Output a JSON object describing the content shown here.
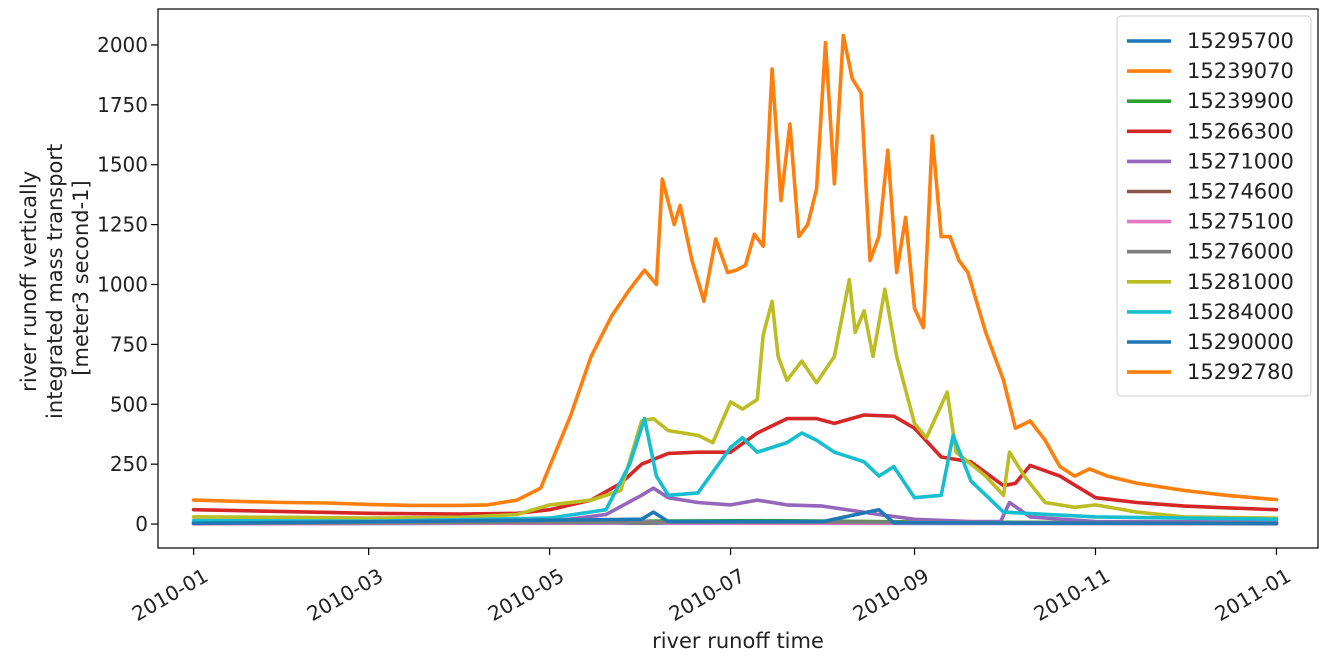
{
  "chart_data": {
    "type": "line",
    "xlabel": "river runoff time",
    "ylabel_lines": [
      "river runoff vertically",
      "integrated mass transport",
      "[meter3 second-1]"
    ],
    "x_ticks": [
      "2010-01",
      "2010-03",
      "2010-05",
      "2010-07",
      "2010-09",
      "2010-11",
      "2011-01"
    ],
    "xlim": [
      "2009-12-20",
      "2011-01-15"
    ],
    "y_ticks": [
      "0",
      "250",
      "500",
      "750",
      "1000",
      "1250",
      "1500",
      "1750",
      "2000"
    ],
    "ylim": [
      -100,
      2150
    ],
    "grid": false,
    "legend_position": "top-right",
    "series": [
      {
        "name": "15295700",
        "color": "#1f77b4",
        "points": [
          [
            "2010-01-01",
            2
          ],
          [
            "2010-06-01",
            4
          ],
          [
            "2010-09-01",
            3
          ],
          [
            "2011-01-01",
            2
          ]
        ]
      },
      {
        "name": "15239070",
        "color": "#ff7f0e",
        "points": [
          [
            "2010-01-01",
            2
          ],
          [
            "2010-06-01",
            6
          ],
          [
            "2010-08-01",
            5
          ],
          [
            "2011-01-01",
            2
          ]
        ]
      },
      {
        "name": "15239900",
        "color": "#2ca02c",
        "points": [
          [
            "2010-01-01",
            3
          ],
          [
            "2010-06-01",
            12
          ],
          [
            "2010-07-15",
            14
          ],
          [
            "2010-09-01",
            9
          ],
          [
            "2011-01-01",
            3
          ]
        ]
      },
      {
        "name": "15266300",
        "color": "#d62728",
        "points": [
          [
            "2010-01-01",
            60
          ],
          [
            "2010-02-01",
            52
          ],
          [
            "2010-03-01",
            45
          ],
          [
            "2010-04-01",
            42
          ],
          [
            "2010-04-20",
            45
          ],
          [
            "2010-05-01",
            60
          ],
          [
            "2010-05-15",
            100
          ],
          [
            "2010-05-25",
            170
          ],
          [
            "2010-06-01",
            250
          ],
          [
            "2010-06-10",
            295
          ],
          [
            "2010-06-20",
            300
          ],
          [
            "2010-07-01",
            300
          ],
          [
            "2010-07-10",
            380
          ],
          [
            "2010-07-20",
            440
          ],
          [
            "2010-07-30",
            440
          ],
          [
            "2010-08-05",
            420
          ],
          [
            "2010-08-15",
            455
          ],
          [
            "2010-08-25",
            450
          ],
          [
            "2010-09-01",
            400
          ],
          [
            "2010-09-10",
            280
          ],
          [
            "2010-09-20",
            260
          ],
          [
            "2010-10-01",
            160
          ],
          [
            "2010-10-05",
            170
          ],
          [
            "2010-10-10",
            245
          ],
          [
            "2010-10-20",
            200
          ],
          [
            "2010-11-01",
            110
          ],
          [
            "2010-11-15",
            90
          ],
          [
            "2010-12-01",
            75
          ],
          [
            "2010-12-15",
            68
          ],
          [
            "2011-01-01",
            60
          ]
        ]
      },
      {
        "name": "15271000",
        "color": "#9467bd",
        "points": [
          [
            "2010-01-01",
            10
          ],
          [
            "2010-03-01",
            8
          ],
          [
            "2010-05-01",
            10
          ],
          [
            "2010-05-20",
            40
          ],
          [
            "2010-06-01",
            120
          ],
          [
            "2010-06-05",
            150
          ],
          [
            "2010-06-10",
            110
          ],
          [
            "2010-06-20",
            90
          ],
          [
            "2010-07-01",
            80
          ],
          [
            "2010-07-10",
            100
          ],
          [
            "2010-07-20",
            80
          ],
          [
            "2010-08-01",
            75
          ],
          [
            "2010-08-20",
            40
          ],
          [
            "2010-09-01",
            20
          ],
          [
            "2010-09-20",
            10
          ],
          [
            "2010-09-30",
            10
          ],
          [
            "2010-10-03",
            90
          ],
          [
            "2010-10-10",
            30
          ],
          [
            "2010-11-01",
            10
          ],
          [
            "2011-01-01",
            8
          ]
        ]
      },
      {
        "name": "15274600",
        "color": "#8c564b",
        "points": [
          [
            "2010-01-01",
            2
          ],
          [
            "2010-06-01",
            6
          ],
          [
            "2010-08-01",
            6
          ],
          [
            "2011-01-01",
            2
          ]
        ]
      },
      {
        "name": "15275100",
        "color": "#e377c2",
        "points": [
          [
            "2010-01-01",
            1
          ],
          [
            "2010-05-25",
            5
          ],
          [
            "2010-06-01",
            12
          ],
          [
            "2010-06-10",
            4
          ],
          [
            "2010-09-01",
            3
          ],
          [
            "2011-01-01",
            1
          ]
        ]
      },
      {
        "name": "15276000",
        "color": "#7f7f7f",
        "points": [
          [
            "2010-01-01",
            3
          ],
          [
            "2010-06-01",
            8
          ],
          [
            "2010-08-01",
            8
          ],
          [
            "2011-01-01",
            3
          ]
        ]
      },
      {
        "name": "15281000",
        "color": "#bcbd22",
        "points": [
          [
            "2010-01-01",
            30
          ],
          [
            "2010-02-01",
            28
          ],
          [
            "2010-03-01",
            25
          ],
          [
            "2010-04-01",
            28
          ],
          [
            "2010-04-20",
            40
          ],
          [
            "2010-05-01",
            80
          ],
          [
            "2010-05-15",
            100
          ],
          [
            "2010-05-25",
            140
          ],
          [
            "2010-06-01",
            430
          ],
          [
            "2010-06-05",
            440
          ],
          [
            "2010-06-10",
            390
          ],
          [
            "2010-06-20",
            370
          ],
          [
            "2010-06-25",
            340
          ],
          [
            "2010-07-01",
            510
          ],
          [
            "2010-07-05",
            480
          ],
          [
            "2010-07-10",
            520
          ],
          [
            "2010-07-12",
            790
          ],
          [
            "2010-07-15",
            930
          ],
          [
            "2010-07-17",
            700
          ],
          [
            "2010-07-20",
            600
          ],
          [
            "2010-07-25",
            680
          ],
          [
            "2010-07-30",
            590
          ],
          [
            "2010-08-05",
            700
          ],
          [
            "2010-08-10",
            1020
          ],
          [
            "2010-08-12",
            800
          ],
          [
            "2010-08-15",
            890
          ],
          [
            "2010-08-18",
            700
          ],
          [
            "2010-08-22",
            980
          ],
          [
            "2010-08-26",
            700
          ],
          [
            "2010-09-01",
            420
          ],
          [
            "2010-09-05",
            360
          ],
          [
            "2010-09-12",
            550
          ],
          [
            "2010-09-15",
            300
          ],
          [
            "2010-09-25",
            200
          ],
          [
            "2010-10-01",
            120
          ],
          [
            "2010-10-03",
            300
          ],
          [
            "2010-10-08",
            200
          ],
          [
            "2010-10-15",
            90
          ],
          [
            "2010-10-25",
            70
          ],
          [
            "2010-11-01",
            80
          ],
          [
            "2010-11-15",
            50
          ],
          [
            "2010-12-01",
            30
          ],
          [
            "2011-01-01",
            25
          ]
        ]
      },
      {
        "name": "15284000",
        "color": "#17becf",
        "points": [
          [
            "2010-01-01",
            15
          ],
          [
            "2010-03-01",
            12
          ],
          [
            "2010-05-01",
            25
          ],
          [
            "2010-05-20",
            60
          ],
          [
            "2010-05-28",
            250
          ],
          [
            "2010-06-02",
            440
          ],
          [
            "2010-06-06",
            200
          ],
          [
            "2010-06-10",
            120
          ],
          [
            "2010-06-20",
            130
          ],
          [
            "2010-07-01",
            320
          ],
          [
            "2010-07-05",
            360
          ],
          [
            "2010-07-10",
            300
          ],
          [
            "2010-07-20",
            340
          ],
          [
            "2010-07-25",
            380
          ],
          [
            "2010-07-30",
            350
          ],
          [
            "2010-08-05",
            300
          ],
          [
            "2010-08-15",
            260
          ],
          [
            "2010-08-20",
            200
          ],
          [
            "2010-08-25",
            240
          ],
          [
            "2010-09-01",
            110
          ],
          [
            "2010-09-10",
            120
          ],
          [
            "2010-09-14",
            370
          ],
          [
            "2010-09-20",
            180
          ],
          [
            "2010-10-01",
            50
          ],
          [
            "2010-11-01",
            30
          ],
          [
            "2011-01-01",
            20
          ]
        ]
      },
      {
        "name": "15290000",
        "color": "#1f77b4",
        "points": [
          [
            "2010-01-01",
            3
          ],
          [
            "2010-06-01",
            20
          ],
          [
            "2010-06-05",
            50
          ],
          [
            "2010-06-10",
            10
          ],
          [
            "2010-08-01",
            10
          ],
          [
            "2010-08-20",
            60
          ],
          [
            "2010-08-25",
            5
          ],
          [
            "2011-01-01",
            2
          ]
        ]
      },
      {
        "name": "15292780",
        "color": "#ff7f0e",
        "points": [
          [
            "2010-01-01",
            100
          ],
          [
            "2010-01-15",
            95
          ],
          [
            "2010-02-01",
            90
          ],
          [
            "2010-02-15",
            88
          ],
          [
            "2010-03-01",
            82
          ],
          [
            "2010-03-15",
            78
          ],
          [
            "2010-04-01",
            78
          ],
          [
            "2010-04-10",
            80
          ],
          [
            "2010-04-20",
            100
          ],
          [
            "2010-04-28",
            150
          ],
          [
            "2010-05-01",
            240
          ],
          [
            "2010-05-08",
            450
          ],
          [
            "2010-05-15",
            700
          ],
          [
            "2010-05-22",
            870
          ],
          [
            "2010-05-28",
            980
          ],
          [
            "2010-06-02",
            1060
          ],
          [
            "2010-06-06",
            1000
          ],
          [
            "2010-06-08",
            1440
          ],
          [
            "2010-06-12",
            1250
          ],
          [
            "2010-06-14",
            1330
          ],
          [
            "2010-06-18",
            1100
          ],
          [
            "2010-06-22",
            930
          ],
          [
            "2010-06-26",
            1190
          ],
          [
            "2010-06-30",
            1050
          ],
          [
            "2010-07-03",
            1060
          ],
          [
            "2010-07-06",
            1080
          ],
          [
            "2010-07-09",
            1210
          ],
          [
            "2010-07-12",
            1160
          ],
          [
            "2010-07-15",
            1900
          ],
          [
            "2010-07-18",
            1350
          ],
          [
            "2010-07-21",
            1670
          ],
          [
            "2010-07-24",
            1200
          ],
          [
            "2010-07-27",
            1250
          ],
          [
            "2010-07-30",
            1400
          ],
          [
            "2010-08-02",
            2010
          ],
          [
            "2010-08-05",
            1420
          ],
          [
            "2010-08-08",
            2040
          ],
          [
            "2010-08-11",
            1860
          ],
          [
            "2010-08-14",
            1800
          ],
          [
            "2010-08-17",
            1100
          ],
          [
            "2010-08-20",
            1200
          ],
          [
            "2010-08-23",
            1560
          ],
          [
            "2010-08-26",
            1050
          ],
          [
            "2010-08-29",
            1280
          ],
          [
            "2010-09-01",
            900
          ],
          [
            "2010-09-04",
            820
          ],
          [
            "2010-09-07",
            1620
          ],
          [
            "2010-09-10",
            1200
          ],
          [
            "2010-09-13",
            1200
          ],
          [
            "2010-09-16",
            1100
          ],
          [
            "2010-09-19",
            1050
          ],
          [
            "2010-09-25",
            800
          ],
          [
            "2010-10-01",
            600
          ],
          [
            "2010-10-05",
            400
          ],
          [
            "2010-10-10",
            430
          ],
          [
            "2010-10-15",
            350
          ],
          [
            "2010-10-20",
            240
          ],
          [
            "2010-10-25",
            200
          ],
          [
            "2010-10-30",
            230
          ],
          [
            "2010-11-05",
            200
          ],
          [
            "2010-11-15",
            170
          ],
          [
            "2010-12-01",
            140
          ],
          [
            "2010-12-15",
            120
          ],
          [
            "2011-01-01",
            102
          ]
        ]
      }
    ]
  }
}
